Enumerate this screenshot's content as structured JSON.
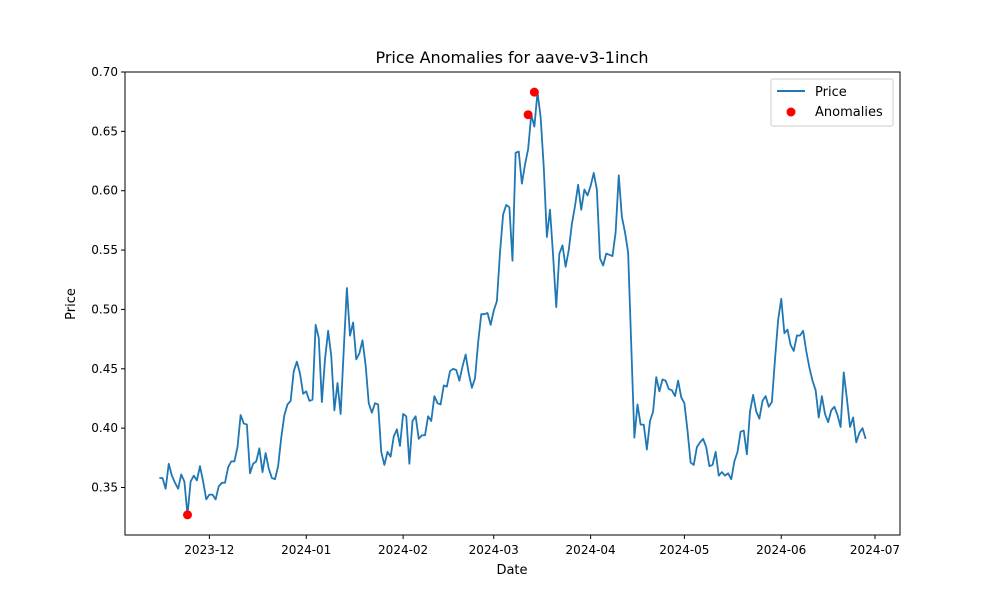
{
  "chart_data": {
    "type": "line",
    "title": "Price Anomalies for aave-v3-1inch",
    "xlabel": "Date",
    "ylabel": "Price",
    "xlim": [
      "2023-11-04",
      "2024-07-09"
    ],
    "ylim": [
      0.31,
      0.7
    ],
    "x_ticks": [
      {
        "date": "2023-12-01",
        "label": "2023-12"
      },
      {
        "date": "2024-01-01",
        "label": "2024-01"
      },
      {
        "date": "2024-02-01",
        "label": "2024-02"
      },
      {
        "date": "2024-03-01",
        "label": "2024-03"
      },
      {
        "date": "2024-04-01",
        "label": "2024-04"
      },
      {
        "date": "2024-05-01",
        "label": "2024-05"
      },
      {
        "date": "2024-06-01",
        "label": "2024-06"
      },
      {
        "date": "2024-07-01",
        "label": "2024-07"
      }
    ],
    "y_ticks": [
      "0.35",
      "0.40",
      "0.45",
      "0.50",
      "0.55",
      "0.60",
      "0.65",
      "0.70"
    ],
    "grid": false,
    "legend_position": "upper-right",
    "series": [
      {
        "name": "Price",
        "color": "#1f77b4",
        "start_date": "2023-11-15",
        "values": [
          0.358,
          0.358,
          0.349,
          0.37,
          0.36,
          0.354,
          0.349,
          0.361,
          0.355,
          0.327,
          0.355,
          0.36,
          0.356,
          0.368,
          0.355,
          0.34,
          0.344,
          0.344,
          0.34,
          0.351,
          0.354,
          0.354,
          0.367,
          0.372,
          0.372,
          0.384,
          0.411,
          0.404,
          0.403,
          0.362,
          0.37,
          0.372,
          0.383,
          0.363,
          0.379,
          0.366,
          0.358,
          0.357,
          0.368,
          0.392,
          0.411,
          0.42,
          0.423,
          0.448,
          0.456,
          0.446,
          0.429,
          0.431,
          0.423,
          0.424,
          0.487,
          0.476,
          0.422,
          0.458,
          0.482,
          0.461,
          0.415,
          0.438,
          0.412,
          0.466,
          0.518,
          0.478,
          0.489,
          0.458,
          0.463,
          0.474,
          0.453,
          0.421,
          0.413,
          0.421,
          0.42,
          0.38,
          0.369,
          0.38,
          0.376,
          0.393,
          0.399,
          0.385,
          0.412,
          0.41,
          0.37,
          0.406,
          0.41,
          0.391,
          0.394,
          0.394,
          0.41,
          0.406,
          0.427,
          0.421,
          0.42,
          0.436,
          0.435,
          0.448,
          0.45,
          0.449,
          0.44,
          0.452,
          0.462,
          0.446,
          0.434,
          0.442,
          0.472,
          0.496,
          0.496,
          0.497,
          0.487,
          0.499,
          0.507,
          0.548,
          0.58,
          0.588,
          0.586,
          0.541,
          0.632,
          0.633,
          0.606,
          0.622,
          0.635,
          0.664,
          0.654,
          0.683,
          0.662,
          0.62,
          0.561,
          0.584,
          0.545,
          0.502,
          0.547,
          0.554,
          0.536,
          0.55,
          0.572,
          0.587,
          0.605,
          0.584,
          0.601,
          0.596,
          0.604,
          0.615,
          0.601,
          0.543,
          0.537,
          0.547,
          0.546,
          0.545,
          0.565,
          0.613,
          0.578,
          0.565,
          0.548,
          0.47,
          0.392,
          0.42,
          0.403,
          0.403,
          0.382,
          0.406,
          0.414,
          0.443,
          0.431,
          0.441,
          0.44,
          0.433,
          0.432,
          0.427,
          0.44,
          0.426,
          0.421,
          0.398,
          0.371,
          0.369,
          0.384,
          0.388,
          0.391,
          0.384,
          0.368,
          0.369,
          0.38,
          0.36,
          0.363,
          0.36,
          0.362,
          0.357,
          0.372,
          0.38,
          0.397,
          0.398,
          0.378,
          0.414,
          0.428,
          0.414,
          0.408,
          0.423,
          0.427,
          0.418,
          0.422,
          0.458,
          0.491,
          0.509,
          0.48,
          0.483,
          0.47,
          0.465,
          0.478,
          0.478,
          0.482,
          0.465,
          0.451,
          0.44,
          0.432,
          0.409,
          0.427,
          0.412,
          0.405,
          0.415,
          0.418,
          0.411,
          0.401,
          0.447,
          0.425,
          0.401,
          0.409,
          0.388,
          0.396,
          0.4,
          0.391
        ]
      },
      {
        "name": "Anomalies",
        "color": "#ff0000",
        "points": [
          {
            "date": "2023-11-24",
            "value": 0.327
          },
          {
            "date": "2024-03-12",
            "value": 0.664
          },
          {
            "date": "2024-03-14",
            "value": 0.683
          }
        ]
      }
    ]
  }
}
